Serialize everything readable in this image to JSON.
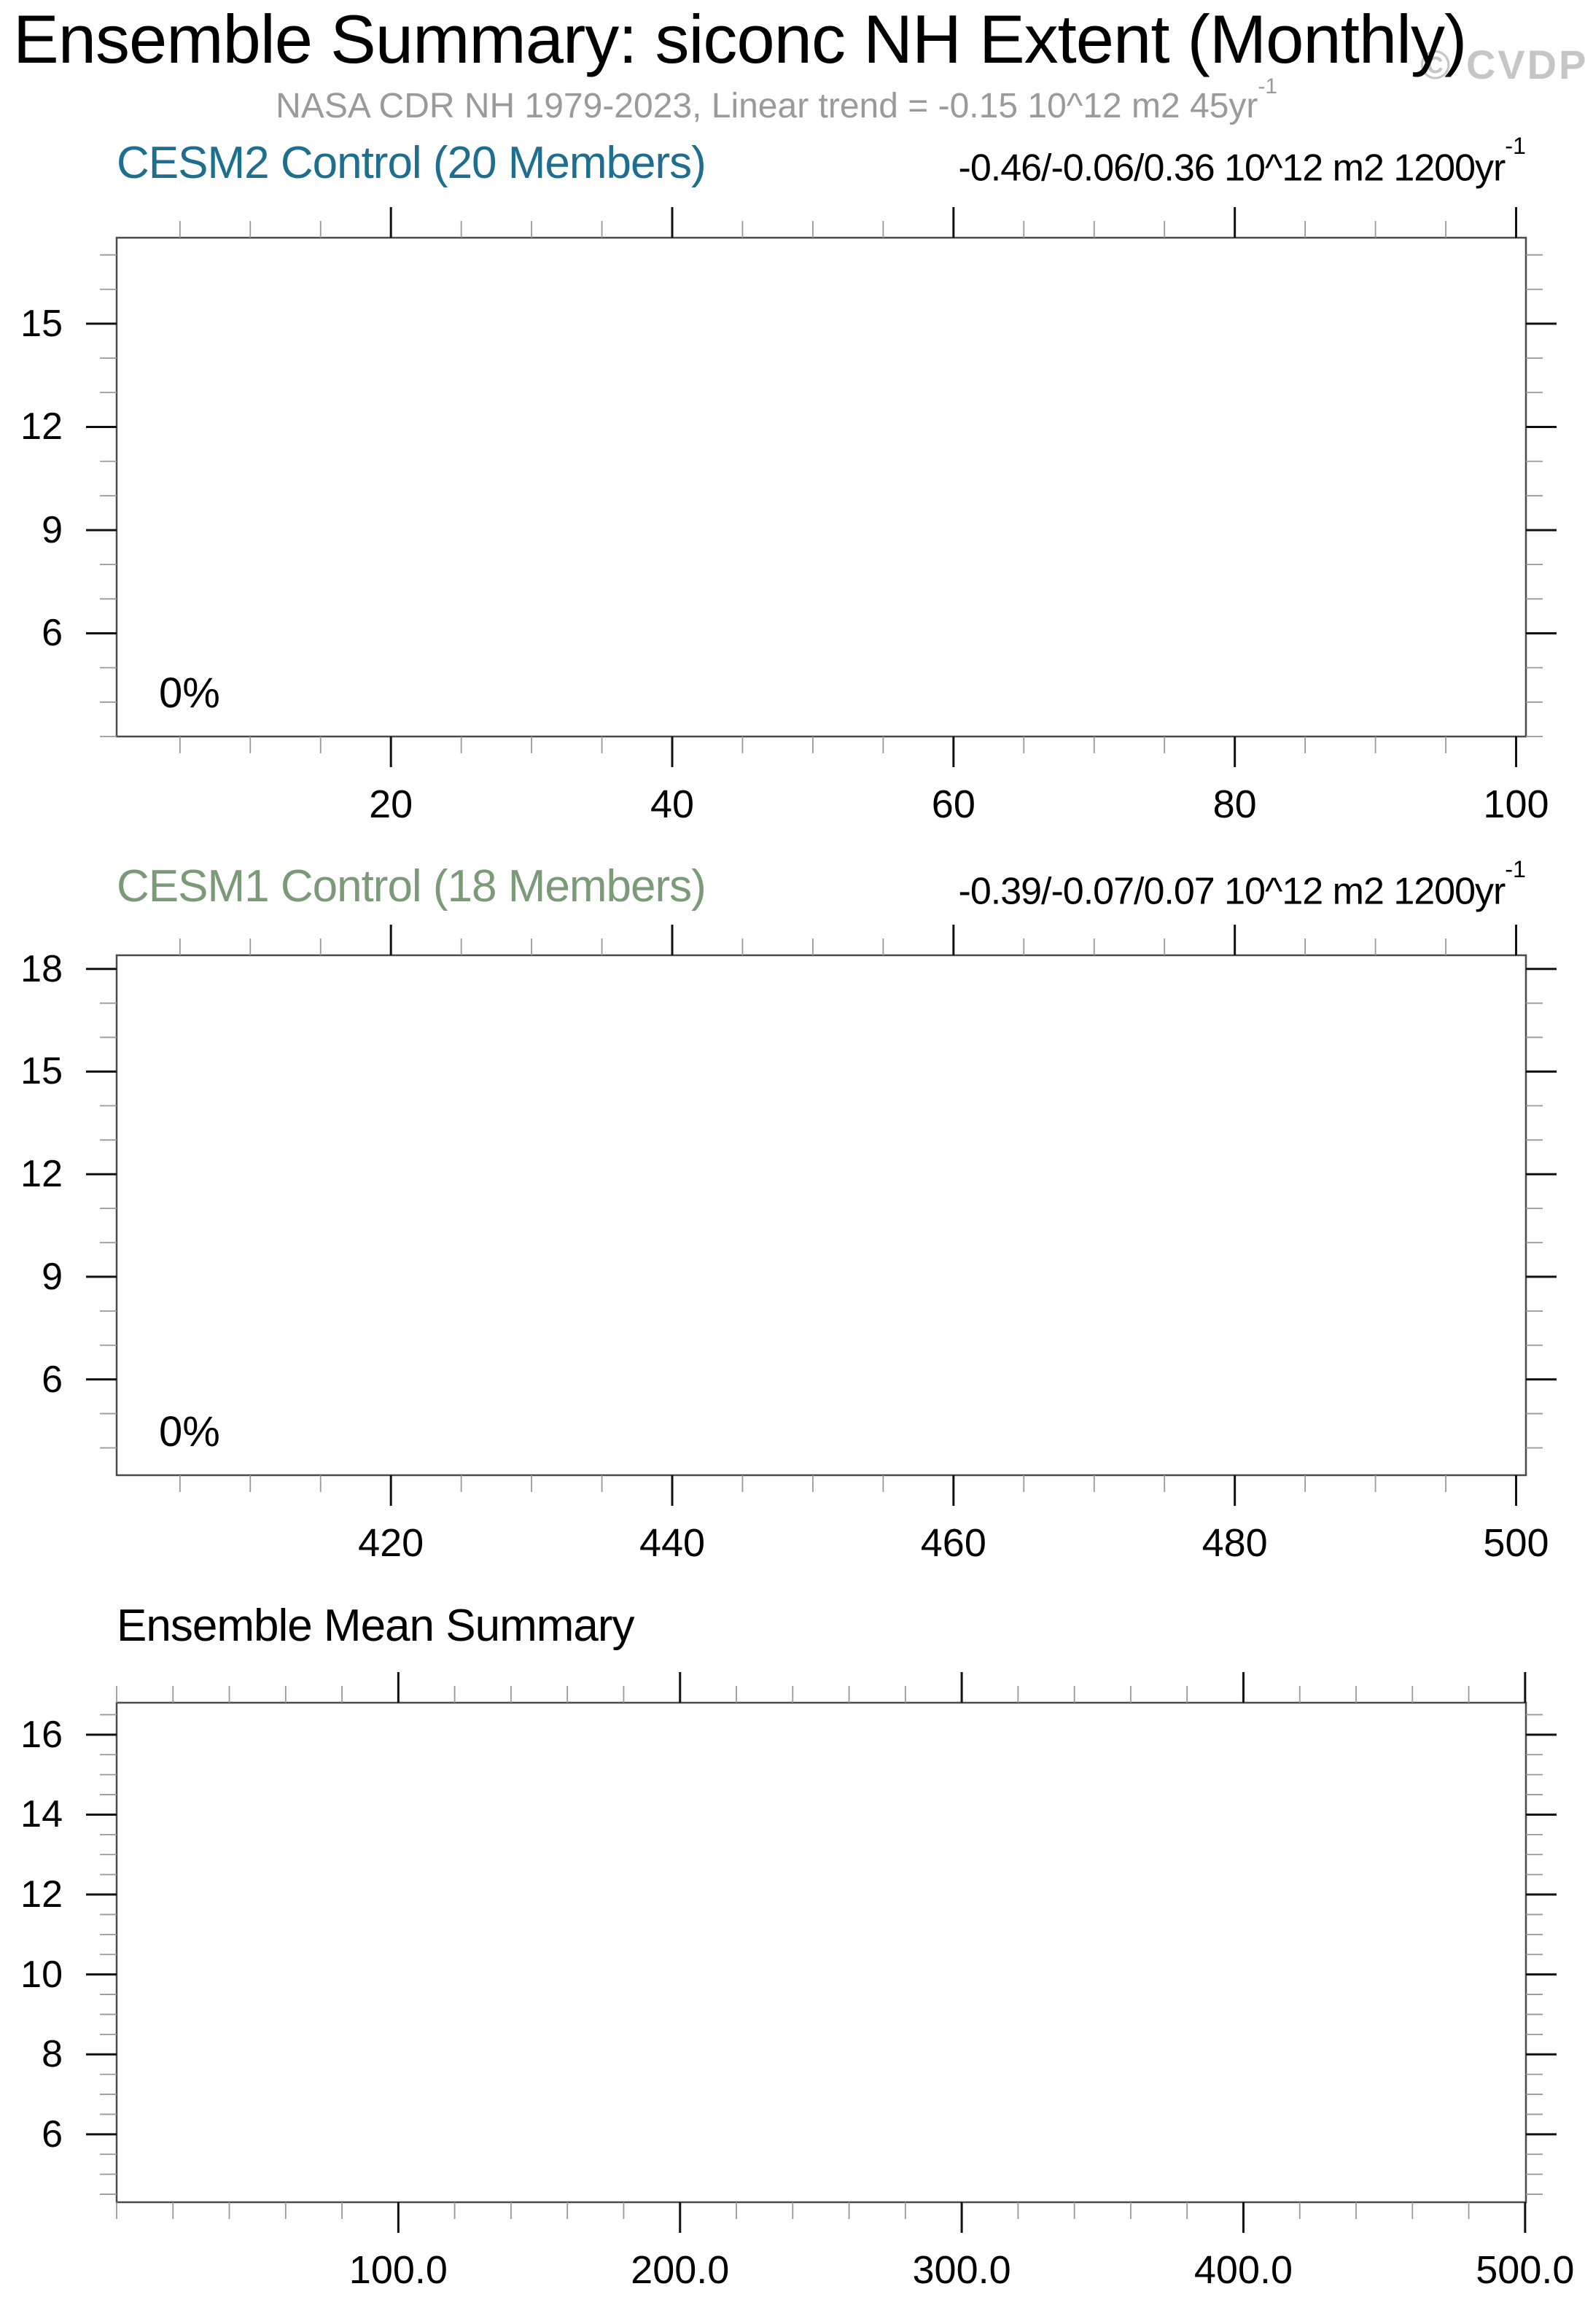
{
  "page": {
    "title": "Ensemble Summary: siconc NH Extent (Monthly)",
    "subtitle_main": "NASA CDR NH 1979-2023, Linear trend = -0.15 10^12 m2 45yr",
    "subtitle_sup": "-1",
    "watermark": "© CVDP"
  },
  "colors": {
    "title": "#000000",
    "subtitle": "#9a9a9a",
    "watermark": "#c6c6c6",
    "cesm2_heading": "#1d6e8f",
    "cesm1_heading": "#7b9a78",
    "ensemble_heading": "#000000",
    "frame": "#4a4a4a",
    "major_tick": "#111111",
    "minor_tick": "#999999"
  },
  "chart_data": [
    {
      "type": "line",
      "panel": "cesm2-control",
      "title": "CESM2 Control (20 Members)",
      "trend_stats": "-0.46/-0.06/0.36 10^12 m2 1200yr",
      "trend_stats_sup": "-1",
      "inner_label": "0%",
      "x_axis": {
        "min": 0.5,
        "max": 100.7,
        "major_ticks": [
          20,
          40,
          60,
          80,
          100
        ],
        "tick_labels": [
          "20",
          "40",
          "60",
          "80",
          "100"
        ],
        "minor_step": 5
      },
      "y_axis": {
        "min": 3.0,
        "max": 17.5,
        "major_ticks": [
          6,
          9,
          12,
          15
        ],
        "tick_labels": [
          "6",
          "9",
          "12",
          "15"
        ],
        "minor_step": 1
      },
      "series": [],
      "grid": false
    },
    {
      "type": "line",
      "panel": "cesm1-control",
      "title": "CESM1 Control (18 Members)",
      "trend_stats": "-0.39/-0.07/0.07 10^12 m2 1200yr",
      "trend_stats_sup": "-1",
      "inner_label": "0%",
      "x_axis": {
        "min": 400.5,
        "max": 500.7,
        "major_ticks": [
          420,
          440,
          460,
          480,
          500
        ],
        "tick_labels": [
          "420",
          "440",
          "460",
          "480",
          "500"
        ],
        "minor_step": 5
      },
      "y_axis": {
        "min": 3.2,
        "max": 18.4,
        "major_ticks": [
          6,
          9,
          12,
          15,
          18
        ],
        "tick_labels": [
          "6",
          "9",
          "12",
          "15",
          "18"
        ],
        "minor_step": 1
      },
      "series": [],
      "grid": false
    },
    {
      "type": "line",
      "panel": "ensemble-mean-summary",
      "title": "Ensemble Mean Summary",
      "trend_stats": "",
      "trend_stats_sup": "",
      "inner_label": "",
      "x_axis": {
        "min": 0,
        "max": 500.3,
        "major_ticks": [
          100,
          200,
          300,
          400,
          500
        ],
        "tick_labels": [
          "100.0",
          "200.0",
          "300.0",
          "400.0",
          "500.0"
        ],
        "minor_step": 20
      },
      "y_axis": {
        "min": 4.3,
        "max": 16.8,
        "major_ticks": [
          6,
          8,
          10,
          12,
          14,
          16
        ],
        "tick_labels": [
          "6",
          "8",
          "10",
          "12",
          "14",
          "16"
        ],
        "minor_step": 0.5
      },
      "series": [],
      "grid": false
    }
  ]
}
